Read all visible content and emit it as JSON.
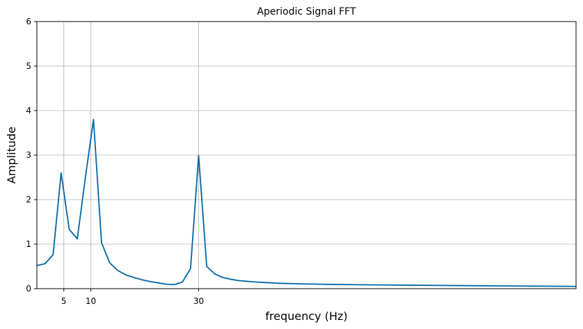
{
  "chart_data": {
    "type": "line",
    "title": "Aperiodic Signal FFT",
    "xlabel": "frequency (Hz)",
    "ylabel": "Amplitude",
    "xlim": [
      0,
      100
    ],
    "ylim": [
      0,
      6
    ],
    "xticks": [
      5,
      10,
      30
    ],
    "yticks": [
      0,
      1,
      2,
      3,
      4,
      5,
      6
    ],
    "grid": true,
    "line_color": "#0066a8",
    "series": [
      {
        "x": [
          0,
          1.5,
          3,
          4.5,
          6,
          7.5,
          9,
          10.5,
          12,
          13.5,
          15,
          16.5,
          18,
          19.5,
          21,
          22.5,
          24,
          25.5,
          27,
          28.5,
          30,
          31.5,
          33,
          34.5,
          36,
          37.5,
          39,
          40.5,
          42,
          43.5,
          45,
          50,
          55,
          60,
          65,
          70,
          75,
          80,
          85,
          90,
          95,
          100
        ],
        "y": [
          0.52,
          0.56,
          0.76,
          2.6,
          1.33,
          1.12,
          2.5,
          3.8,
          1.03,
          0.58,
          0.41,
          0.31,
          0.25,
          0.2,
          0.16,
          0.13,
          0.1,
          0.09,
          0.15,
          0.45,
          2.99,
          0.5,
          0.33,
          0.25,
          0.21,
          0.18,
          0.165,
          0.15,
          0.14,
          0.13,
          0.12,
          0.105,
          0.095,
          0.088,
          0.082,
          0.077,
          0.072,
          0.067,
          0.063,
          0.059,
          0.055,
          0.051
        ]
      }
    ]
  }
}
